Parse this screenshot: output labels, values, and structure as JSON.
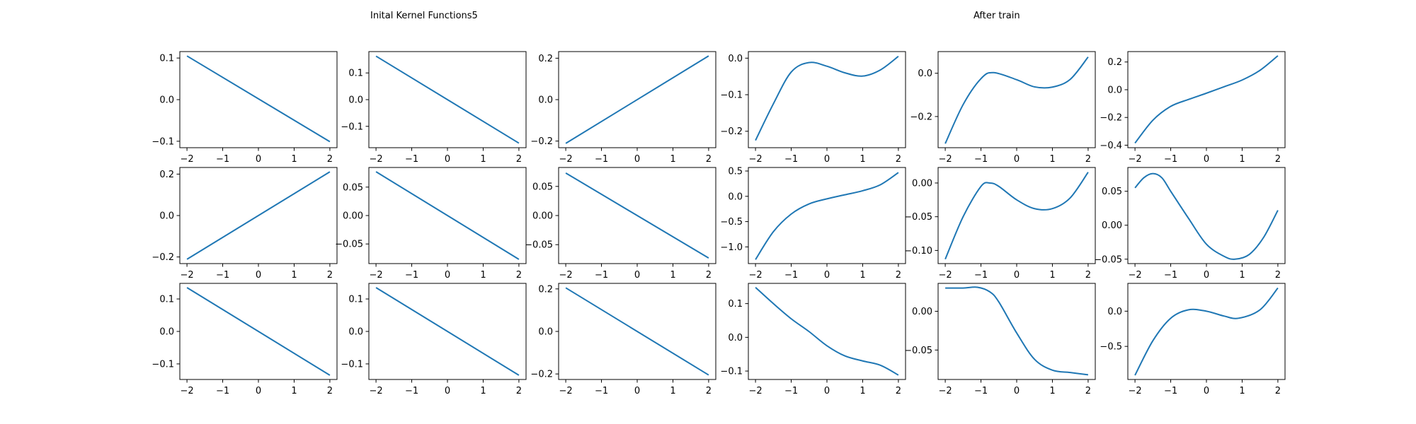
{
  "titles": {
    "left": "Inital Kernel Functions5",
    "right": "After train"
  },
  "line_color": "#1f77b4",
  "chart_data": [
    {
      "type": "line",
      "row": 0,
      "col": 0,
      "xlim": [
        -2.2,
        2.2
      ],
      "ylim": [
        -0.1155,
        0.1155
      ],
      "xticks": [
        -2,
        -1,
        0,
        1,
        2
      ],
      "xtick_labels": [
        "−2",
        "−1",
        "0",
        "1",
        "2"
      ],
      "yticks": [
        0.1,
        0.0,
        -0.1
      ],
      "ytick_labels": [
        "0.1",
        "0.0",
        "−0.1"
      ],
      "series": [
        {
          "x": [
            -2,
            2
          ],
          "y": [
            0.105,
            -0.101
          ]
        }
      ]
    },
    {
      "type": "line",
      "row": 0,
      "col": 1,
      "xlim": [
        -2.2,
        2.2
      ],
      "ylim": [
        -0.18,
        0.18
      ],
      "xticks": [
        -2,
        -1,
        0,
        1,
        2
      ],
      "xtick_labels": [
        "−2",
        "−1",
        "0",
        "1",
        "2"
      ],
      "yticks": [
        0.1,
        0.0,
        -0.1
      ],
      "ytick_labels": [
        "0.1",
        "0.0",
        "−0.1"
      ],
      "series": [
        {
          "x": [
            -2,
            2
          ],
          "y": [
            0.163,
            -0.163
          ]
        }
      ]
    },
    {
      "type": "line",
      "row": 0,
      "col": 2,
      "xlim": [
        -2.2,
        2.2
      ],
      "ylim": [
        -0.232,
        0.232
      ],
      "xticks": [
        -2,
        -1,
        0,
        1,
        2
      ],
      "xtick_labels": [
        "−2",
        "−1",
        "0",
        "1",
        "2"
      ],
      "yticks": [
        0.2,
        0.0,
        -0.2
      ],
      "ytick_labels": [
        "0.2",
        "0.0",
        "−0.2"
      ],
      "series": [
        {
          "x": [
            -2,
            2
          ],
          "y": [
            -0.211,
            0.211
          ]
        }
      ]
    },
    {
      "type": "line",
      "row": 0,
      "col": 3,
      "xlim": [
        -2.2,
        2.2
      ],
      "ylim": [
        -0.245,
        0.018
      ],
      "xticks": [
        -2,
        -1,
        0,
        1,
        2
      ],
      "xtick_labels": [
        "−2",
        "−1",
        "0",
        "1",
        "2"
      ],
      "yticks": [
        0.0,
        -0.1,
        -0.2
      ],
      "ytick_labels": [
        "0.0",
        "−0.1",
        "−0.2"
      ],
      "series": [
        {
          "x": [
            -2,
            -1.5,
            -1,
            -0.5,
            0,
            0.5,
            1,
            1.5,
            2
          ],
          "y": [
            -0.225,
            -0.125,
            -0.038,
            -0.012,
            -0.022,
            -0.04,
            -0.049,
            -0.032,
            0.005
          ]
        }
      ]
    },
    {
      "type": "line",
      "row": 0,
      "col": 4,
      "xlim": [
        -2.2,
        2.2
      ],
      "ylim": [
        -0.344,
        0.1
      ],
      "xticks": [
        -2,
        -1,
        0,
        1,
        2
      ],
      "xtick_labels": [
        "−2",
        "−1",
        "0",
        "1",
        "2"
      ],
      "yticks": [
        0.0,
        -0.2
      ],
      "ytick_labels": [
        "0.0",
        "−0.2"
      ],
      "series": [
        {
          "x": [
            -2,
            -1.5,
            -1,
            -0.65,
            0,
            0.5,
            1,
            1.5,
            2
          ],
          "y": [
            -0.325,
            -0.145,
            -0.025,
            0.003,
            -0.03,
            -0.063,
            -0.064,
            -0.028,
            0.075
          ]
        }
      ]
    },
    {
      "type": "line",
      "row": 0,
      "col": 5,
      "xlim": [
        -2.2,
        2.2
      ],
      "ylim": [
        -0.418,
        0.275
      ],
      "xticks": [
        -2,
        -1,
        0,
        1,
        2
      ],
      "xtick_labels": [
        "−2",
        "−1",
        "0",
        "1",
        "2"
      ],
      "yticks": [
        0.2,
        0.0,
        -0.2,
        -0.4
      ],
      "ytick_labels": [
        "0.2",
        "0.0",
        "−0.2",
        "−0.4"
      ],
      "series": [
        {
          "x": [
            -2,
            -1.5,
            -1,
            -0.5,
            0,
            0.5,
            1,
            1.5,
            2
          ],
          "y": [
            -0.385,
            -0.22,
            -0.12,
            -0.07,
            -0.025,
            0.022,
            0.07,
            0.14,
            0.245
          ]
        }
      ]
    },
    {
      "type": "line",
      "row": 1,
      "col": 0,
      "xlim": [
        -2.2,
        2.2
      ],
      "ylim": [
        -0.232,
        0.232
      ],
      "xticks": [
        -2,
        -1,
        0,
        1,
        2
      ],
      "xtick_labels": [
        "−2",
        "−1",
        "0",
        "1",
        "2"
      ],
      "yticks": [
        0.2,
        0.0,
        -0.2
      ],
      "ytick_labels": [
        "0.2",
        "0.0",
        "−0.2"
      ],
      "series": [
        {
          "x": [
            -2,
            2
          ],
          "y": [
            -0.211,
            0.211
          ]
        }
      ]
    },
    {
      "type": "line",
      "row": 1,
      "col": 1,
      "xlim": [
        -2.2,
        2.2
      ],
      "ylim": [
        -0.0845,
        0.0845
      ],
      "xticks": [
        -2,
        -1,
        0,
        1,
        2
      ],
      "xtick_labels": [
        "−2",
        "−1",
        "0",
        "1",
        "2"
      ],
      "yticks": [
        0.05,
        0.0,
        -0.05
      ],
      "ytick_labels": [
        "0.05",
        "0.00",
        "−0.05"
      ],
      "series": [
        {
          "x": [
            -2,
            2
          ],
          "y": [
            0.077,
            -0.077
          ]
        }
      ]
    },
    {
      "type": "line",
      "row": 1,
      "col": 2,
      "xlim": [
        -2.2,
        2.2
      ],
      "ylim": [
        -0.0825,
        0.0825
      ],
      "xticks": [
        -2,
        -1,
        0,
        1,
        2
      ],
      "xtick_labels": [
        "−2",
        "−1",
        "0",
        "1",
        "2"
      ],
      "yticks": [
        0.05,
        0.0,
        -0.05
      ],
      "ytick_labels": [
        "0.05",
        "0.00",
        "−0.05"
      ],
      "series": [
        {
          "x": [
            -2,
            2
          ],
          "y": [
            0.073,
            -0.073
          ]
        }
      ]
    },
    {
      "type": "line",
      "row": 1,
      "col": 3,
      "xlim": [
        -2.2,
        2.2
      ],
      "ylim": [
        -1.33,
        0.57
      ],
      "xticks": [
        -2,
        -1,
        0,
        1,
        2
      ],
      "xtick_labels": [
        "−2",
        "−1",
        "0",
        "1",
        "2"
      ],
      "yticks": [
        0.5,
        0.0,
        -0.5,
        -1.0
      ],
      "ytick_labels": [
        "0.5",
        "0.0",
        "−0.5",
        "−1.0"
      ],
      "series": [
        {
          "x": [
            -2,
            -1.5,
            -1,
            -0.5,
            0,
            0.5,
            1,
            1.5,
            2
          ],
          "y": [
            -1.25,
            -0.7,
            -0.35,
            -0.15,
            -0.05,
            0.03,
            0.11,
            0.23,
            0.47
          ]
        }
      ]
    },
    {
      "type": "line",
      "row": 1,
      "col": 4,
      "xlim": [
        -2.2,
        2.2
      ],
      "ylim": [
        -0.1195,
        0.023
      ],
      "xticks": [
        -2,
        -1,
        0,
        1,
        2
      ],
      "xtick_labels": [
        "−2",
        "−1",
        "0",
        "1",
        "2"
      ],
      "yticks": [
        0.0,
        -0.05,
        -0.1
      ],
      "ytick_labels": [
        "0.00",
        "−0.05",
        "−0.10"
      ],
      "series": [
        {
          "x": [
            -2,
            -1.5,
            -1,
            -0.75,
            -0.5,
            0,
            0.5,
            1,
            1.5,
            2
          ],
          "y": [
            -0.113,
            -0.05,
            -0.005,
            0.0,
            -0.005,
            -0.025,
            -0.038,
            -0.038,
            -0.022,
            0.016
          ]
        }
      ]
    },
    {
      "type": "line",
      "row": 1,
      "col": 5,
      "xlim": [
        -2.2,
        2.2
      ],
      "ylim": [
        -0.0565,
        0.085
      ],
      "xticks": [
        -2,
        -1,
        0,
        1,
        2
      ],
      "xtick_labels": [
        "−2",
        "−1",
        "0",
        "1",
        "2"
      ],
      "yticks": [
        0.05,
        0.0,
        -0.05
      ],
      "ytick_labels": [
        "0.05",
        "0.00",
        "−0.05"
      ],
      "series": [
        {
          "x": [
            -2,
            -1.75,
            -1.5,
            -1.25,
            -1,
            -0.5,
            0,
            0.5,
            0.8,
            1.2,
            1.6,
            2
          ],
          "y": [
            0.055,
            0.07,
            0.076,
            0.07,
            0.05,
            0.01,
            -0.028,
            -0.046,
            -0.05,
            -0.043,
            -0.018,
            0.022
          ]
        }
      ]
    },
    {
      "type": "line",
      "row": 2,
      "col": 0,
      "xlim": [
        -2.2,
        2.2
      ],
      "ylim": [
        -0.148,
        0.148
      ],
      "xticks": [
        -2,
        -1,
        0,
        1,
        2
      ],
      "xtick_labels": [
        "−2",
        "−1",
        "0",
        "1",
        "2"
      ],
      "yticks": [
        0.1,
        0.0,
        -0.1
      ],
      "ytick_labels": [
        "0.1",
        "0.0",
        "−0.1"
      ],
      "series": [
        {
          "x": [
            -2,
            2
          ],
          "y": [
            0.135,
            -0.135
          ]
        }
      ]
    },
    {
      "type": "line",
      "row": 2,
      "col": 1,
      "xlim": [
        -2.2,
        2.2
      ],
      "ylim": [
        -0.148,
        0.148
      ],
      "xticks": [
        -2,
        -1,
        0,
        1,
        2
      ],
      "xtick_labels": [
        "−2",
        "−1",
        "0",
        "1",
        "2"
      ],
      "yticks": [
        0.1,
        0.0,
        -0.1
      ],
      "ytick_labels": [
        "0.1",
        "0.0",
        "−0.1"
      ],
      "series": [
        {
          "x": [
            -2,
            2
          ],
          "y": [
            0.135,
            -0.135
          ]
        }
      ]
    },
    {
      "type": "line",
      "row": 2,
      "col": 2,
      "xlim": [
        -2.2,
        2.2
      ],
      "ylim": [
        -0.226,
        0.226
      ],
      "xticks": [
        -2,
        -1,
        0,
        1,
        2
      ],
      "xtick_labels": [
        "−2",
        "−1",
        "0",
        "1",
        "2"
      ],
      "yticks": [
        0.2,
        0.0,
        -0.2
      ],
      "ytick_labels": [
        "0.2",
        "0.0",
        "−0.2"
      ],
      "series": [
        {
          "x": [
            -2,
            2
          ],
          "y": [
            0.205,
            -0.205
          ]
        }
      ]
    },
    {
      "type": "line",
      "row": 2,
      "col": 3,
      "xlim": [
        -2.2,
        2.2
      ],
      "ylim": [
        -0.125,
        0.16
      ],
      "xticks": [
        -2,
        -1,
        0,
        1,
        2
      ],
      "xtick_labels": [
        "−2",
        "−1",
        "0",
        "1",
        "2"
      ],
      "yticks": [
        0.1,
        0.0,
        -0.1
      ],
      "ytick_labels": [
        "0.1",
        "0.0",
        "−0.1"
      ],
      "series": [
        {
          "x": [
            -2,
            -1.5,
            -1,
            -0.5,
            0,
            0.5,
            1,
            1.5,
            2
          ],
          "y": [
            0.148,
            0.1,
            0.055,
            0.017,
            -0.025,
            -0.055,
            -0.07,
            -0.083,
            -0.112
          ]
        }
      ]
    },
    {
      "type": "line",
      "row": 2,
      "col": 4,
      "xlim": [
        -2.2,
        2.2
      ],
      "ylim": [
        -0.088,
        0.036
      ],
      "xticks": [
        -2,
        -1,
        0,
        1,
        2
      ],
      "xtick_labels": [
        "−2",
        "−1",
        "0",
        "1",
        "2"
      ],
      "yticks": [
        0.0,
        -0.05
      ],
      "ytick_labels": [
        "0.00",
        "−0.05"
      ],
      "series": [
        {
          "x": [
            -2,
            -1.5,
            -1.1,
            -0.75,
            -0.5,
            0,
            0.5,
            1,
            1.5,
            2
          ],
          "y": [
            0.03,
            0.03,
            0.031,
            0.025,
            0.012,
            -0.028,
            -0.062,
            -0.076,
            -0.079,
            -0.082
          ]
        }
      ]
    },
    {
      "type": "line",
      "row": 2,
      "col": 5,
      "xlim": [
        -2.2,
        2.2
      ],
      "ylim": [
        -0.97,
        0.395
      ],
      "xticks": [
        -2,
        -1,
        0,
        1,
        2
      ],
      "xtick_labels": [
        "−2",
        "−1",
        "0",
        "1",
        "2"
      ],
      "yticks": [
        0.0,
        -0.5
      ],
      "ytick_labels": [
        "0.0",
        "−0.5"
      ],
      "series": [
        {
          "x": [
            -2,
            -1.5,
            -1,
            -0.5,
            0,
            0.5,
            0.9,
            1.5,
            2
          ],
          "y": [
            -0.91,
            -0.42,
            -0.1,
            0.02,
            0.0,
            -0.07,
            -0.1,
            0.02,
            0.33
          ]
        }
      ]
    }
  ]
}
